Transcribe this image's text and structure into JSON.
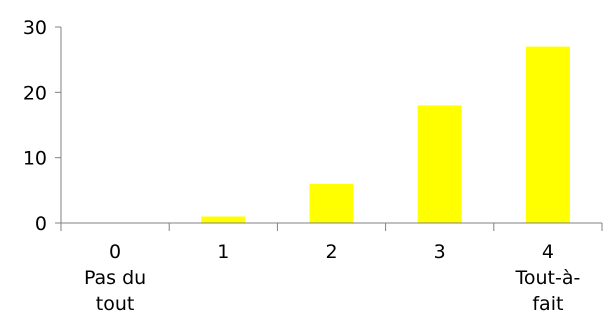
{
  "chart_data": {
    "type": "bar",
    "categories": [
      [
        "0",
        "Pas du",
        "tout"
      ],
      [
        "1"
      ],
      [
        "2"
      ],
      [
        "3"
      ],
      [
        "4",
        "Tout-à-",
        "fait"
      ]
    ],
    "values": [
      0,
      1,
      6,
      18,
      27
    ],
    "ylim": [
      0,
      30
    ],
    "yticks": [
      "0",
      "10",
      "20",
      "30"
    ],
    "grid": false,
    "legend": "none",
    "bar_color": "#FFFF00",
    "axis_color": "#808080"
  }
}
